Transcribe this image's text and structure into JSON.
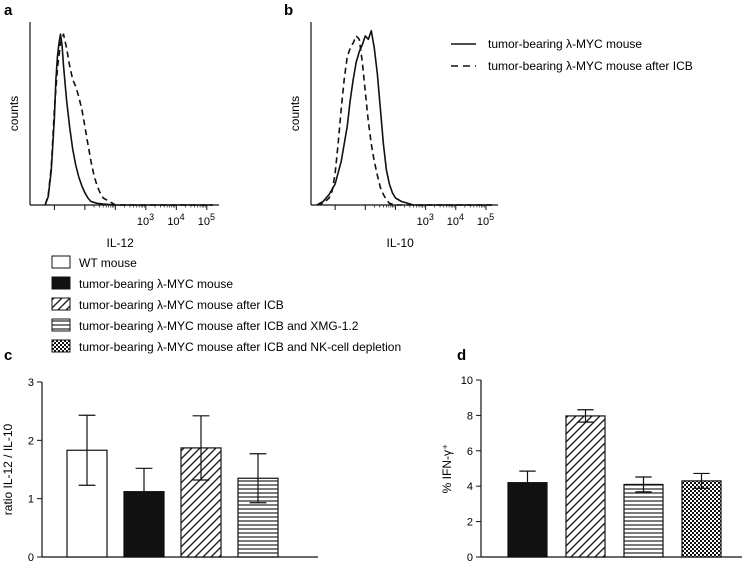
{
  "panels": {
    "a": "a",
    "b": "b",
    "c": "c",
    "d": "d"
  },
  "legend_top": {
    "solid": "tumor-bearing λ-MYC mouse",
    "dashed": "tumor-bearing λ-MYC mouse after ICB"
  },
  "legend_groups": [
    {
      "label": "WT mouse",
      "fill": "white"
    },
    {
      "label": "tumor-bearing λ-MYC mouse",
      "fill": "black"
    },
    {
      "label": "tumor-bearing λ-MYC mouse after ICB",
      "fill": "diagonal"
    },
    {
      "label": "tumor-bearing λ-MYC mouse after ICB and XMG-1.2",
      "fill": "horizontal"
    },
    {
      "label": "tumor-bearing λ-MYC mouse after ICB and NK-cell depletion",
      "fill": "checker"
    }
  ],
  "chart_data": [
    {
      "id": "a",
      "type": "line",
      "title": "",
      "xlabel": "IL-12",
      "ylabel": "counts",
      "x_scale": "log",
      "xlim": [
        -0.8,
        5.4
      ],
      "ylim": [
        0,
        1.05
      ],
      "xticks": [
        "10^3",
        "10^4",
        "10^5"
      ],
      "xtick_values": [
        3,
        4,
        5
      ],
      "series": [
        {
          "name": "tumor-bearing λ-MYC mouse",
          "style": "solid",
          "x": [
            -0.3,
            -0.2,
            -0.1,
            0.0,
            0.05,
            0.1,
            0.15,
            0.2,
            0.25,
            0.3,
            0.4,
            0.5,
            0.6,
            0.7,
            0.8,
            0.9,
            1.0,
            1.1,
            1.2,
            1.4,
            1.6,
            2.0,
            3.0,
            5.2
          ],
          "y": [
            0.0,
            0.05,
            0.2,
            0.5,
            0.72,
            0.85,
            0.93,
            0.98,
            0.92,
            0.8,
            0.6,
            0.45,
            0.32,
            0.23,
            0.16,
            0.11,
            0.07,
            0.04,
            0.02,
            0.01,
            0.005,
            0.0,
            0.0,
            0.0
          ]
        },
        {
          "name": "tumor-bearing λ-MYC mouse after ICB",
          "style": "dashed",
          "x": [
            -0.3,
            -0.2,
            -0.1,
            0.0,
            0.1,
            0.2,
            0.3,
            0.4,
            0.5,
            0.6,
            0.7,
            0.8,
            0.9,
            1.0,
            1.1,
            1.2,
            1.3,
            1.4,
            1.5,
            1.6,
            1.8,
            2.0,
            3.0,
            5.2
          ],
          "y": [
            0.0,
            0.06,
            0.22,
            0.55,
            0.78,
            0.93,
            0.98,
            0.9,
            0.8,
            0.72,
            0.68,
            0.62,
            0.55,
            0.45,
            0.35,
            0.25,
            0.17,
            0.11,
            0.07,
            0.04,
            0.02,
            0.0,
            0.0,
            0.0
          ]
        }
      ]
    },
    {
      "id": "b",
      "type": "line",
      "title": "",
      "xlabel": "IL-10",
      "ylabel": "counts",
      "x_scale": "log",
      "xlim": [
        -0.8,
        5.4
      ],
      "ylim": [
        0,
        1.05
      ],
      "xticks": [
        "10^3",
        "10^4",
        "10^5"
      ],
      "xtick_values": [
        3,
        4,
        5
      ],
      "series": [
        {
          "name": "tumor-bearing λ-MYC mouse",
          "style": "solid",
          "x": [
            -0.6,
            -0.4,
            -0.2,
            0.0,
            0.2,
            0.4,
            0.5,
            0.6,
            0.7,
            0.8,
            0.9,
            1.0,
            1.1,
            1.2,
            1.3,
            1.4,
            1.5,
            1.6,
            1.7,
            1.8,
            1.9,
            2.0,
            2.2,
            2.6,
            5.2
          ],
          "y": [
            0.0,
            0.02,
            0.06,
            0.12,
            0.25,
            0.45,
            0.6,
            0.72,
            0.82,
            0.88,
            0.92,
            0.97,
            0.95,
            1.0,
            0.9,
            0.75,
            0.55,
            0.35,
            0.2,
            0.12,
            0.07,
            0.04,
            0.02,
            0.0,
            0.0
          ]
        },
        {
          "name": "tumor-bearing λ-MYC mouse after ICB",
          "style": "dashed",
          "x": [
            -0.6,
            -0.4,
            -0.2,
            -0.1,
            0.0,
            0.1,
            0.2,
            0.3,
            0.4,
            0.5,
            0.6,
            0.7,
            0.8,
            0.9,
            1.0,
            1.1,
            1.2,
            1.3,
            1.4,
            1.5,
            1.6,
            1.7,
            1.8,
            2.0,
            5.2
          ],
          "y": [
            0.0,
            0.01,
            0.04,
            0.08,
            0.18,
            0.35,
            0.55,
            0.72,
            0.85,
            0.9,
            0.93,
            0.97,
            0.95,
            0.82,
            0.65,
            0.48,
            0.35,
            0.25,
            0.17,
            0.1,
            0.06,
            0.03,
            0.01,
            0.0,
            0.0
          ]
        }
      ]
    },
    {
      "id": "c",
      "type": "bar",
      "title": "",
      "xlabel": "",
      "ylabel": "ratio IL-12 / IL-10",
      "ylim": [
        0,
        3
      ],
      "yticks": [
        0,
        1,
        2,
        3
      ],
      "categories": [
        "WT mouse",
        "tumor-bearing λ-MYC mouse",
        "tumor-bearing λ-MYC mouse after ICB",
        "tumor-bearing λ-MYC mouse after ICB and XMG-1.2"
      ],
      "fills": [
        "white",
        "black",
        "diagonal",
        "horizontal"
      ],
      "values": [
        1.83,
        1.12,
        1.87,
        1.35
      ],
      "errors": [
        0.6,
        0.4,
        0.55,
        0.42
      ]
    },
    {
      "id": "d",
      "type": "bar",
      "title": "",
      "xlabel": "",
      "ylabel": "% IFN-γ⁺",
      "ylim": [
        0,
        10
      ],
      "yticks": [
        0,
        2,
        4,
        6,
        8,
        10
      ],
      "categories": [
        "tumor-bearing λ-MYC mouse",
        "tumor-bearing λ-MYC mouse after ICB",
        "tumor-bearing λ-MYC mouse after ICB and XMG-1.2",
        "tumor-bearing λ-MYC mouse after ICB and NK-cell depletion"
      ],
      "fills": [
        "black",
        "diagonal",
        "horizontal",
        "checker"
      ],
      "values": [
        4.2,
        7.97,
        4.1,
        4.3
      ],
      "errors": [
        0.65,
        0.35,
        0.42,
        0.42
      ]
    }
  ]
}
